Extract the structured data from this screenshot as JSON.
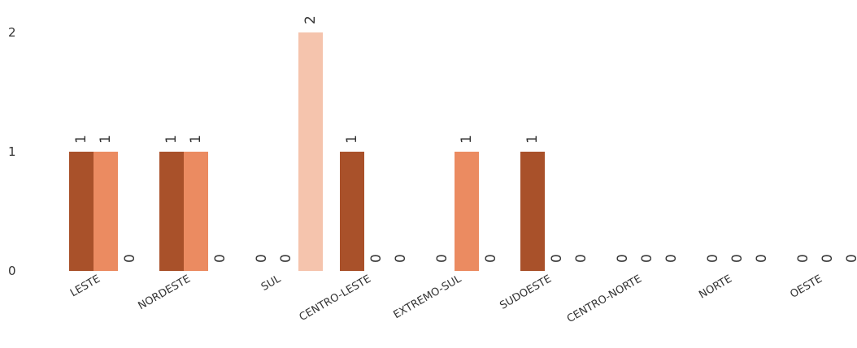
{
  "chart_data": {
    "type": "bar",
    "categories": [
      "LESTE",
      "NORDESTE",
      "SUL",
      "CENTRO-LESTE",
      "EXTREMO-SUL",
      "SUDOESTE",
      "CENTRO-NORTE",
      "NORTE",
      "OESTE"
    ],
    "series": [
      {
        "color": "#a9512a",
        "values": [
          1,
          1,
          0,
          1,
          0,
          1,
          0,
          0,
          0
        ]
      },
      {
        "color": "#eb8b61",
        "values": [
          1,
          1,
          0,
          0,
          1,
          0,
          0,
          0,
          0
        ]
      },
      {
        "color": "#f5c4ad",
        "values": [
          0,
          0,
          2,
          0,
          0,
          0,
          0,
          0,
          0
        ]
      }
    ],
    "ylim": [
      0,
      2
    ],
    "yticks": [
      "0",
      "1",
      "2"
    ],
    "grid": false,
    "legend": "none",
    "data_labels": true
  }
}
